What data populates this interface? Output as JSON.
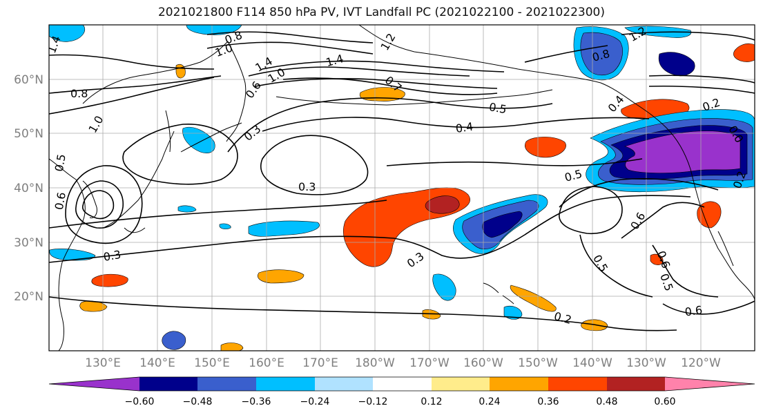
{
  "title": "2021021800 F114 850 hPa PV, IVT Landfall PC (2021022100 - 2021022300)",
  "map": {
    "lat_labels": [
      "60°N",
      "50°N",
      "40°N",
      "30°N",
      "20°N"
    ],
    "lon_labels": [
      "130°E",
      "140°E",
      "150°E",
      "160°E",
      "170°E",
      "180°W",
      "170°W",
      "160°W",
      "150°W",
      "140°W",
      "130°W",
      "120°W"
    ],
    "contour_labels": [
      "1.4",
      "0.8",
      "1.0",
      "0.8",
      "1.4",
      "1.4",
      "1.0",
      "1.2",
      "0.8",
      "1.0",
      "0.5",
      "0.6",
      "0.3",
      "0.7",
      "0.5",
      "0.4",
      "0.3",
      "0.5",
      "0.3",
      "0.3",
      "0.5",
      "0.6",
      "0.6",
      "0.5",
      "0.6",
      "0.2",
      "0.6",
      "0.2",
      "0.4",
      "1.2",
      "0.2",
      "0.0"
    ]
  },
  "colorbar": {
    "tick_labels": [
      "−0.60",
      "−0.48",
      "−0.36",
      "−0.24",
      "−0.12",
      "0.12",
      "0.24",
      "0.36",
      "0.48",
      "0.60"
    ],
    "colors": [
      "#9932cc",
      "#00008b",
      "#3a5fcd",
      "#00bfff",
      "#b0e2ff",
      "#ffffff",
      "#ffec8b",
      "#ffa500",
      "#ff4500",
      "#b22222",
      "#ff82ab"
    ]
  }
}
